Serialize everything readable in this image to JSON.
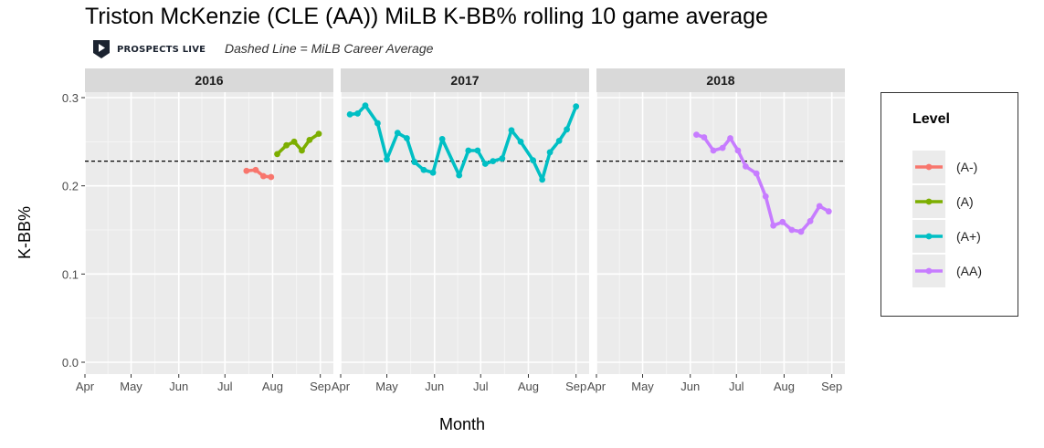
{
  "header": {
    "title": "Triston McKenzie (CLE (AA)) MiLB K-BB% rolling 10 game average",
    "subtitle": "Dashed Line = MiLB Career Average",
    "logo_text": "PROSPECTS LIVE"
  },
  "chart_data": {
    "type": "line",
    "xlabel": "Month",
    "ylabel": "K-BB%",
    "ylim": [
      0.0,
      0.3
    ],
    "yticks": [
      "0.0",
      "0.1",
      "0.2",
      "0.3"
    ],
    "xticks": [
      "Apr",
      "May",
      "Jun",
      "Jul",
      "Aug",
      "Sep"
    ],
    "career_average": 0.228,
    "grid": true,
    "legend": {
      "title": "Level",
      "placement": "right",
      "items": [
        {
          "label": "(A-)",
          "color": "#f8766d"
        },
        {
          "label": "(A)",
          "color": "#7cae00"
        },
        {
          "label": "(A+)",
          "color": "#00bfc4"
        },
        {
          "label": "(AA)",
          "color": "#c77cff"
        }
      ]
    },
    "facets": [
      {
        "label": "2016",
        "series": [
          {
            "name": "(A-)",
            "color": "#f8766d",
            "points": [
              [
                "2016-07-15",
                0.217
              ],
              [
                "2016-07-21",
                0.218
              ],
              [
                "2016-07-26",
                0.211
              ],
              [
                "2016-07-31",
                0.21
              ]
            ]
          },
          {
            "name": "(A)",
            "color": "#7cae00",
            "points": [
              [
                "2016-08-04",
                0.236
              ],
              [
                "2016-08-10",
                0.246
              ],
              [
                "2016-08-15",
                0.25
              ],
              [
                "2016-08-20",
                0.24
              ],
              [
                "2016-08-25",
                0.252
              ],
              [
                "2016-08-31",
                0.259
              ]
            ]
          }
        ]
      },
      {
        "label": "2017",
        "series": [
          {
            "name": "(A+)",
            "color": "#00bfc4",
            "points": [
              [
                "2017-04-07",
                0.281
              ],
              [
                "2017-04-12",
                0.282
              ],
              [
                "2017-04-17",
                0.291
              ],
              [
                "2017-04-25",
                0.271
              ],
              [
                "2017-05-01",
                0.23
              ],
              [
                "2017-05-08",
                0.26
              ],
              [
                "2017-05-14",
                0.254
              ],
              [
                "2017-05-19",
                0.227
              ],
              [
                "2017-05-25",
                0.218
              ],
              [
                "2017-05-31",
                0.215
              ],
              [
                "2017-06-06",
                0.253
              ],
              [
                "2017-06-17",
                0.212
              ],
              [
                "2017-06-23",
                0.24
              ],
              [
                "2017-06-29",
                0.24
              ],
              [
                "2017-07-04",
                0.225
              ],
              [
                "2017-07-09",
                0.228
              ],
              [
                "2017-07-15",
                0.231
              ],
              [
                "2017-07-21",
                0.263
              ],
              [
                "2017-07-27",
                0.25
              ],
              [
                "2017-08-04",
                0.229
              ],
              [
                "2017-08-10",
                0.207
              ],
              [
                "2017-08-15",
                0.238
              ],
              [
                "2017-08-21",
                0.251
              ],
              [
                "2017-08-26",
                0.264
              ],
              [
                "2017-09-01",
                0.29
              ]
            ]
          }
        ]
      },
      {
        "label": "2018",
        "series": [
          {
            "name": "(AA)",
            "color": "#c77cff",
            "points": [
              [
                "2018-06-05",
                0.258
              ],
              [
                "2018-06-10",
                0.255
              ],
              [
                "2018-06-16",
                0.24
              ],
              [
                "2018-06-22",
                0.243
              ],
              [
                "2018-06-27",
                0.254
              ],
              [
                "2018-07-02",
                0.24
              ],
              [
                "2018-07-07",
                0.222
              ],
              [
                "2018-07-14",
                0.214
              ],
              [
                "2018-07-20",
                0.188
              ],
              [
                "2018-07-25",
                0.155
              ],
              [
                "2018-07-31",
                0.159
              ],
              [
                "2018-08-06",
                0.15
              ],
              [
                "2018-08-12",
                0.148
              ],
              [
                "2018-08-18",
                0.16
              ],
              [
                "2018-08-24",
                0.177
              ],
              [
                "2018-08-30",
                0.171
              ]
            ]
          }
        ]
      }
    ]
  }
}
